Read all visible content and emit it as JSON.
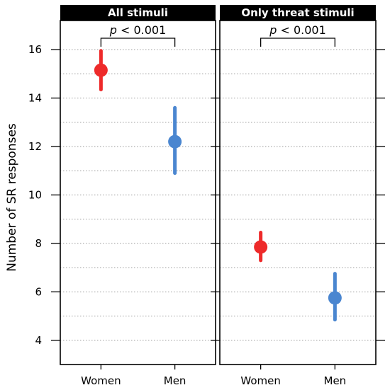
{
  "chart_data": {
    "type": "scatter",
    "ylabel": "Number of SR responses",
    "ylim": [
      3,
      17.2
    ],
    "yticks": [
      4,
      6,
      8,
      10,
      12,
      14,
      16
    ],
    "grid": "horizontal dotted",
    "categories": [
      "Women",
      "Men"
    ],
    "colors": {
      "Women": "#ee2a2a",
      "Men": "#4a86d0",
      "strip_bg": "#000000"
    },
    "panels": [
      {
        "title": "All stimuli",
        "annotation_italic": "p",
        "annotation_rest": " < 0.001",
        "points": [
          {
            "category": "Women",
            "value": 15.15,
            "lower": 14.35,
            "upper": 15.95
          },
          {
            "category": "Men",
            "value": 12.2,
            "lower": 10.9,
            "upper": 13.6
          }
        ]
      },
      {
        "title": "Only threat stimuli",
        "annotation_italic": "p",
        "annotation_rest": " < 0.001",
        "points": [
          {
            "category": "Women",
            "value": 7.85,
            "lower": 7.3,
            "upper": 8.45
          },
          {
            "category": "Men",
            "value": 5.75,
            "lower": 4.85,
            "upper": 6.75
          }
        ]
      }
    ]
  }
}
